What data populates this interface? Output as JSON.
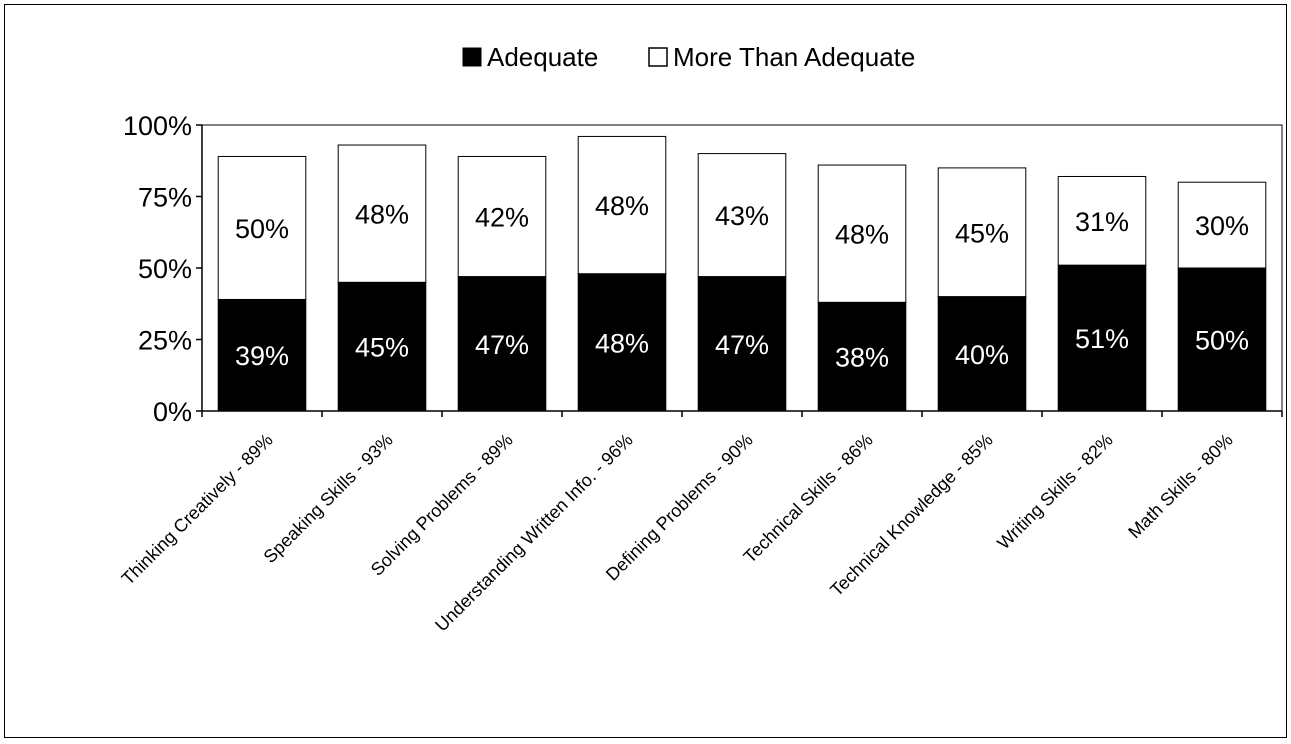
{
  "chart_data": {
    "type": "bar",
    "stacked": true,
    "categories": [
      "Thinking Creatively - 89%",
      "Speaking Skills - 93%",
      "Solving Problems - 89%",
      "Understanding Written Info. - 96%",
      "Defining Problems - 90%",
      "Technical Skills - 86%",
      "Technical Knowledge - 85%",
      "Writing Skills - 82%",
      "Math Skills - 80%"
    ],
    "series": [
      {
        "name": "Adequate",
        "values": [
          39,
          45,
          47,
          48,
          47,
          38,
          40,
          51,
          50
        ],
        "labels": [
          "39%",
          "45%",
          "47%",
          "48%",
          "47%",
          "38%",
          "40%",
          "51%",
          "50%"
        ],
        "color": "#000000"
      },
      {
        "name": "More Than Adequate",
        "values": [
          50,
          48,
          42,
          48,
          43,
          48,
          45,
          31,
          30
        ],
        "labels": [
          "50%",
          "48%",
          "42%",
          "48%",
          "43%",
          "48%",
          "45%",
          "31%",
          "30%"
        ],
        "color": "#ffffff"
      }
    ],
    "yticks": [
      "0%",
      "25%",
      "50%",
      "75%",
      "100%"
    ],
    "ylim": [
      0,
      100
    ],
    "legend": "top",
    "grid": false
  }
}
